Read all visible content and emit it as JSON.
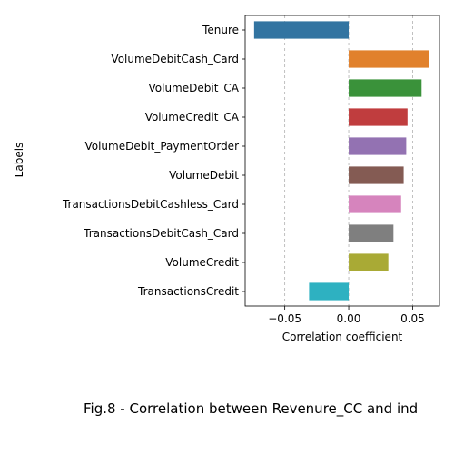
{
  "chart_data": {
    "type": "bar",
    "orientation": "horizontal",
    "title": "",
    "xlabel": "Correlation coefficient",
    "ylabel": "Labels",
    "categories": [
      "Tenure",
      "VolumeDebitCash_Card",
      "VolumeDebit_CA",
      "VolumeCredit_CA",
      "VolumeDebit_PaymentOrder",
      "VolumeDebit",
      "TransactionsDebitCashless_Card",
      "TransactionsDebitCash_Card",
      "VolumeCredit",
      "TransactionsCredit"
    ],
    "values": [
      -0.074,
      0.063,
      0.057,
      0.046,
      0.045,
      0.043,
      0.041,
      0.035,
      0.031,
      -0.031
    ],
    "colors": [
      "#3274a1",
      "#e1812c",
      "#3a923a",
      "#c03d3e",
      "#9372b2",
      "#845b53",
      "#d684bd",
      "#7f7f7f",
      "#a9aa35",
      "#2eb1c1"
    ],
    "xlim": [
      -0.081,
      0.071
    ],
    "xticks": [
      -0.05,
      0.0,
      0.05
    ],
    "xtick_labels": [
      "−0.05",
      "0.00",
      "0.05"
    ],
    "grid": "vertical dashed lines at x ticks",
    "legend": "none"
  },
  "caption": "Fig.8 - Correlation between Revenure_CC and ind"
}
